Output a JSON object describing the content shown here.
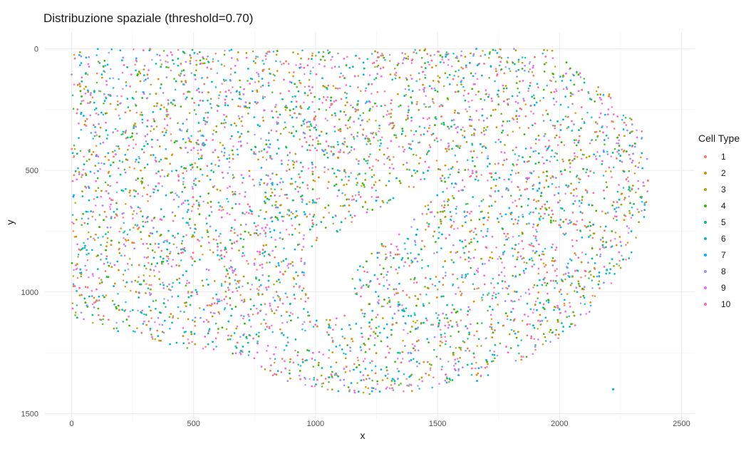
{
  "chart_data": {
    "type": "scatter",
    "title": "Distribuzione spaziale (threshold=0.70)",
    "xlabel": "x",
    "ylabel": "y",
    "xlim": [
      -100,
      2550
    ],
    "ylim": [
      1500,
      -70
    ],
    "y_reversed": true,
    "x_ticks": [
      0,
      500,
      1000,
      1500,
      2000,
      2500
    ],
    "y_ticks": [
      0,
      500,
      1000,
      1500
    ],
    "grid": true,
    "legend_title": "Cell Type",
    "legend_position": "right",
    "series": [
      {
        "name": "1",
        "color": "#F8766D"
      },
      {
        "name": "2",
        "color": "#D89000"
      },
      {
        "name": "3",
        "color": "#A3A500"
      },
      {
        "name": "4",
        "color": "#39B600"
      },
      {
        "name": "5",
        "color": "#00BF7D"
      },
      {
        "name": "6",
        "color": "#00BFC4"
      },
      {
        "name": "7",
        "color": "#00B0F6"
      },
      {
        "name": "8",
        "color": "#9590FF"
      },
      {
        "name": "9",
        "color": "#E76BF3"
      },
      {
        "name": "10",
        "color": "#FF62BC"
      }
    ],
    "tissue_outline": [
      [
        0,
        0
      ],
      [
        1980,
        0
      ],
      [
        2120,
        120
      ],
      [
        2260,
        230
      ],
      [
        2340,
        340
      ],
      [
        2370,
        480
      ],
      [
        2350,
        700
      ],
      [
        2280,
        880
      ],
      [
        2150,
        1060
      ],
      [
        1960,
        1230
      ],
      [
        1700,
        1360
      ],
      [
        1400,
        1420
      ],
      [
        1100,
        1420
      ],
      [
        850,
        1360
      ],
      [
        700,
        1260
      ],
      [
        450,
        1230
      ],
      [
        250,
        1180
      ],
      [
        60,
        1120
      ],
      [
        0,
        1100
      ]
    ],
    "tissue_holes": [
      [
        [
          960,
          860
        ],
        [
          1020,
          800
        ],
        [
          1150,
          720
        ],
        [
          1310,
          640
        ],
        [
          1420,
          560
        ],
        [
          1510,
          490
        ],
        [
          1480,
          600
        ],
        [
          1400,
          700
        ],
        [
          1330,
          760
        ],
        [
          1250,
          810
        ],
        [
          1180,
          880
        ],
        [
          1140,
          970
        ],
        [
          1150,
          1080
        ],
        [
          1080,
          1100
        ],
        [
          990,
          1030
        ],
        [
          950,
          950
        ]
      ],
      [
        [
          540,
          1260
        ],
        [
          700,
          1260
        ],
        [
          720,
          1300
        ],
        [
          650,
          1330
        ],
        [
          560,
          1320
        ]
      ]
    ],
    "outlier_points": [
      {
        "x": 2220,
        "y": 1400,
        "series": "7"
      }
    ]
  }
}
